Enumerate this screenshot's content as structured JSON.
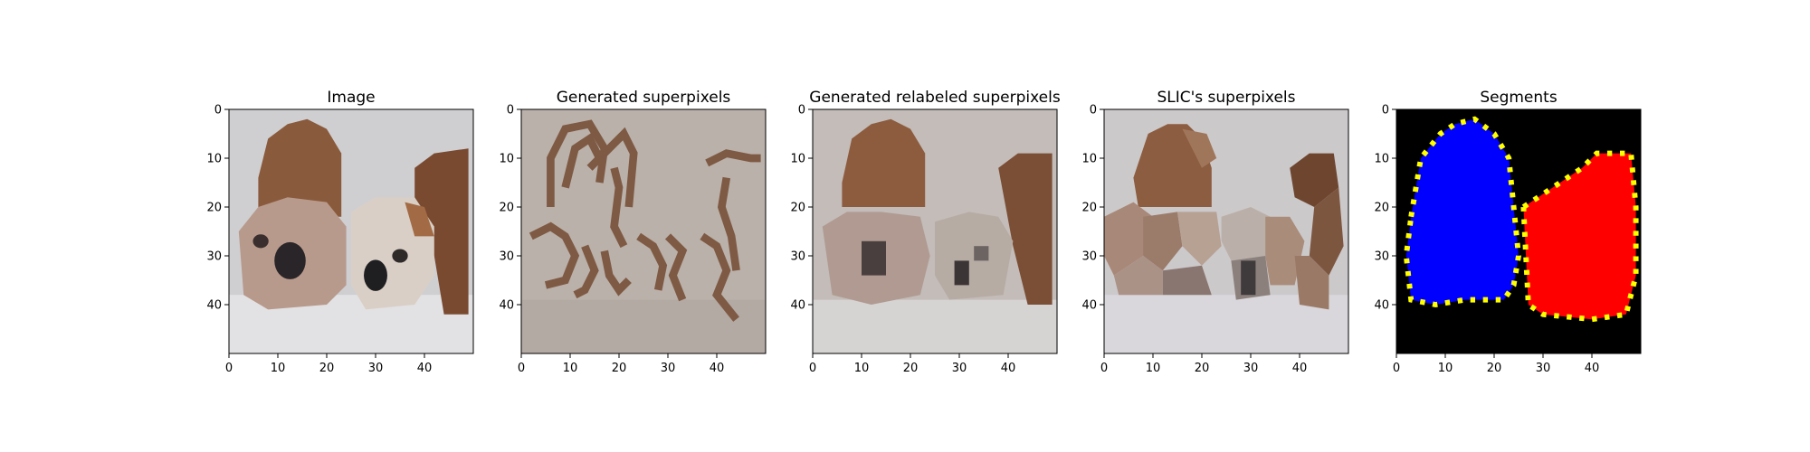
{
  "figure": {
    "panels": [
      {
        "id": "image",
        "title": "Image",
        "content": "photo of two bulldog puppies side by side, pixelated at 50x50 resolution",
        "style": "photo"
      },
      {
        "id": "generated-superpixels",
        "title": "Generated superpixels",
        "content": "brown superpixel boundary outlines on light grey-beige background",
        "style": "outline"
      },
      {
        "id": "generated-relabeled-superpixels",
        "title": "Generated relabeled superpixels",
        "content": "superpixel regions filled with mean colors",
        "style": "relabeled"
      },
      {
        "id": "slic-superpixels",
        "title": "SLIC's superpixels",
        "content": "SLIC superpixels filled with mean colors",
        "style": "slic"
      },
      {
        "id": "segments",
        "title": "Segments",
        "content": "black background with blue segment (left dog) and red segment (right dog) with yellow boundary pixels",
        "style": "segments"
      }
    ],
    "axis": {
      "x_ticks": [
        "0",
        "10",
        "20",
        "30",
        "40"
      ],
      "y_ticks": [
        "0",
        "10",
        "20",
        "30",
        "40"
      ],
      "x_tick_values": [
        0,
        10,
        20,
        30,
        40
      ],
      "y_tick_values": [
        0,
        10,
        20,
        30,
        40
      ],
      "range": [
        0,
        50
      ]
    },
    "colors": {
      "segment_left": "#0000ff",
      "segment_right": "#ff0000",
      "segment_boundary": "#ffff00",
      "segment_background": "#000000"
    }
  }
}
